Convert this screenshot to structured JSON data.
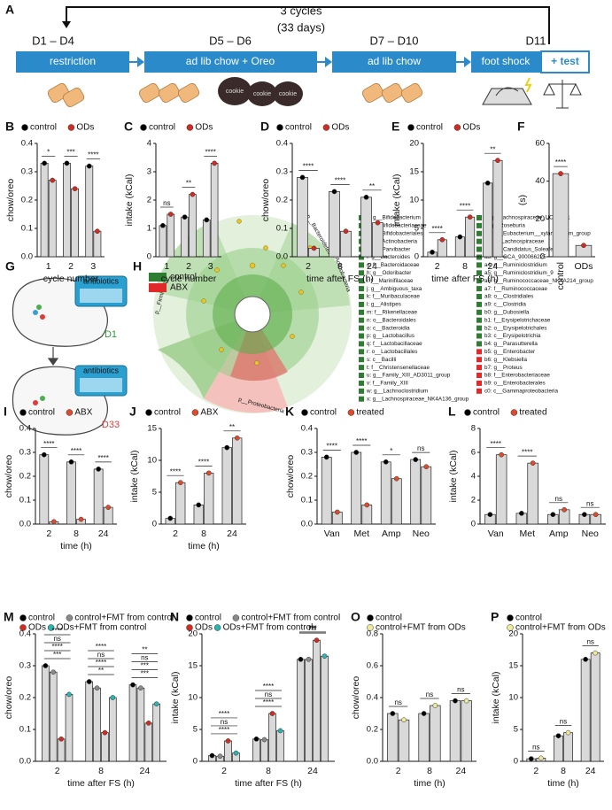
{
  "timeline": {
    "label": "A",
    "cycles": "3 cycles",
    "days": "(33 days)",
    "days_labels": [
      "D1 – D4",
      "D5 – D6",
      "D7 – D10",
      "D11"
    ],
    "steps": [
      "restriction",
      "ad lib chow + Oreo",
      "ad lib chow",
      "foot shock",
      "+ test"
    ],
    "oreo_label": "cookie"
  },
  "antibiotics_panel": {
    "label": "G",
    "top_text": "antibiotics",
    "top_day": "D1",
    "bottom_text": "antibiotics",
    "bottom_day": "D33"
  },
  "cladogram": {
    "label": "H",
    "legend": [
      {
        "text": "control",
        "color": "#2e7d32"
      },
      {
        "text": "ABX",
        "color": "#e02a2a"
      }
    ],
    "phyla": [
      "p__Firmicutes",
      "p__Bacteroidetes",
      "p__Actinobacteria",
      "p__Proteobacteria"
    ],
    "taxa": [
      {
        "text": "a: g__Bifidobacterium",
        "color": "#2e7d32"
      },
      {
        "text": "b: f__Bifidobacteriaceae",
        "color": "#2e7d32"
      },
      {
        "text": "c: o__Bifidobacteriales",
        "color": "#2e7d32"
      },
      {
        "text": "d: c__Actinobacteria",
        "color": "#2e7d32"
      },
      {
        "text": "e: g__Parvibacter",
        "color": "#2e7d32"
      },
      {
        "text": "f: g__Bacteroides",
        "color": "#2e7d32"
      },
      {
        "text": "g: f__Bacteroidaceae",
        "color": "#2e7d32"
      },
      {
        "text": "h: g__Odoribacter",
        "color": "#2e7d32"
      },
      {
        "text": "i: f__Marinifilaceae",
        "color": "#2e7d32"
      },
      {
        "text": "j: g__Ambiguous_taxa",
        "color": "#2e7d32"
      },
      {
        "text": "k: f__Muribaculaceae",
        "color": "#2e7d32"
      },
      {
        "text": "l: g__Alistipes",
        "color": "#2e7d32"
      },
      {
        "text": "m: f__Rikenellaceae",
        "color": "#2e7d32"
      },
      {
        "text": "n: o__Bacteroidales",
        "color": "#2e7d32"
      },
      {
        "text": "o: c__Bacteroidia",
        "color": "#2e7d32"
      },
      {
        "text": "p: g__Lactobacillus",
        "color": "#2e7d32"
      },
      {
        "text": "q: f__Lactobacillaceae",
        "color": "#2e7d32"
      },
      {
        "text": "r: o__Lactobacillales",
        "color": "#2e7d32"
      },
      {
        "text": "s: c__Bacilli",
        "color": "#2e7d32"
      },
      {
        "text": "t: f__Christensenellaceae",
        "color": "#2e7d32"
      },
      {
        "text": "u: g__Family_XIII_AD3011_group",
        "color": "#2e7d32"
      },
      {
        "text": "v: f__Family_XIII",
        "color": "#2e7d32"
      },
      {
        "text": "w: g__Lachnoclostridium",
        "color": "#2e7d32"
      },
      {
        "text": "x: g__Lachnospiraceae_NK4A136_group",
        "color": "#2e7d32"
      },
      {
        "text": "y: g__Lachnospiraceae_UCG_001",
        "color": "#2e7d32"
      },
      {
        "text": "z: g__Roseburia",
        "color": "#2e7d32"
      },
      {
        "text": "a0: g__Eubacterium__xylanophilum_group",
        "color": "#2e7d32"
      },
      {
        "text": "a1: f__Lachnospiraceae",
        "color": "#2e7d32"
      },
      {
        "text": "a2: g__Candidatus_Soleaferrea",
        "color": "#2e7d32"
      },
      {
        "text": "a3: g__GCA_900066225",
        "color": "#2e7d32"
      },
      {
        "text": "a4: g__Ruminiclostridium",
        "color": "#2e7d32"
      },
      {
        "text": "a5: g__Ruminiclostridium_9",
        "color": "#2e7d32"
      },
      {
        "text": "a6: g__Ruminococcaceae_NK4A214_group",
        "color": "#2e7d32"
      },
      {
        "text": "a7: f__Ruminococcaceae",
        "color": "#2e7d32"
      },
      {
        "text": "a8: o__Clostridiales",
        "color": "#2e7d32"
      },
      {
        "text": "a9: c__Clostridia",
        "color": "#2e7d32"
      },
      {
        "text": "b0: g__Dubosiella",
        "color": "#2e7d32"
      },
      {
        "text": "b1: f__Erysipelotrichaceae",
        "color": "#2e7d32"
      },
      {
        "text": "b2: o__Erysipelotrichales",
        "color": "#2e7d32"
      },
      {
        "text": "b3: c__Erysipelotrichia",
        "color": "#2e7d32"
      },
      {
        "text": "b4: g__Parasutterella",
        "color": "#2e7d32"
      },
      {
        "text": "b5: g__Enterobacter",
        "color": "#e02a2a"
      },
      {
        "text": "b6: g__Klebsiella",
        "color": "#e02a2a"
      },
      {
        "text": "b7: g__Proteus",
        "color": "#e02a2a"
      },
      {
        "text": "b8: f__Enterobacteriaceae",
        "color": "#e02a2a"
      },
      {
        "text": "b9: o__Enterobacterales",
        "color": "#e02a2a"
      },
      {
        "text": "c0: c__Gammaproteobacteria",
        "color": "#e02a2a"
      }
    ]
  },
  "chart_data": [
    {
      "type": "bar",
      "label": "B",
      "y_label": "chow/oreo",
      "x_label": "cycle number",
      "categories": [
        "1",
        "2",
        "3"
      ],
      "ylim": [
        0,
        0.4
      ],
      "yticks": [
        {
          "value": 0,
          "label": "0.0"
        },
        0.1,
        0.2,
        0.3,
        0.4
      ],
      "series": [
        {
          "name": "control",
          "color": "#000000",
          "values": [
            0.33,
            0.33,
            0.32
          ]
        },
        {
          "name": "ODs",
          "color": "#d62a1e",
          "values": [
            0.27,
            0.24,
            0.09
          ]
        }
      ],
      "significance": [
        "*",
        "***",
        "****"
      ]
    },
    {
      "type": "bar",
      "label": "C",
      "y_label": "intake (kCal)",
      "x_label": "cycle number",
      "categories": [
        "1",
        "2",
        "3"
      ],
      "ylim": [
        0,
        4
      ],
      "yticks": [
        0,
        1,
        2,
        3,
        4
      ],
      "series": [
        {
          "name": "control",
          "color": "#000000",
          "values": [
            1.1,
            1.4,
            1.3
          ]
        },
        {
          "name": "ODs",
          "color": "#d62a1e",
          "values": [
            1.5,
            2.2,
            3.3
          ]
        }
      ],
      "significance": [
        "ns",
        "**",
        "****"
      ]
    },
    {
      "type": "bar",
      "label": "D",
      "y_label": "chow/oreo",
      "x_label": "time after FS (h)",
      "categories": [
        "2",
        "8",
        "24"
      ],
      "ylim": [
        0,
        0.4
      ],
      "yticks": [
        {
          "value": 0,
          "label": "0.0"
        },
        0.1,
        0.2,
        0.3,
        0.4
      ],
      "series": [
        {
          "name": "control",
          "color": "#000000",
          "values": [
            0.28,
            0.23,
            0.21
          ]
        },
        {
          "name": "ODs",
          "color": "#d62a1e",
          "values": [
            0.03,
            0.09,
            0.12
          ]
        }
      ],
      "significance": [
        "****",
        "****",
        "**"
      ]
    },
    {
      "type": "bar",
      "label": "E",
      "y_label": "intake (kCal)",
      "x_label": "time after FS (h)",
      "categories": [
        "2",
        "8",
        "24"
      ],
      "ylim": [
        0,
        20
      ],
      "yticks": [
        0,
        5,
        10,
        15,
        20
      ],
      "series": [
        {
          "name": "control",
          "color": "#000000",
          "values": [
            0.8,
            3.5,
            13
          ]
        },
        {
          "name": "ODs",
          "color": "#d62a1e",
          "values": [
            3,
            7,
            17
          ]
        }
      ],
      "significance": [
        "****",
        "****",
        "**"
      ]
    },
    {
      "type": "bar",
      "label": "F",
      "y_label": "(s)",
      "categories": [
        "control",
        "ODs"
      ],
      "ylim": [
        0,
        60
      ],
      "yticks": [
        0,
        20,
        40,
        60
      ],
      "series": [
        {
          "color": "#d62a1e",
          "values": [
            44,
            6
          ]
        }
      ],
      "significance": [
        "****"
      ]
    },
    {
      "type": "bar",
      "label": "I",
      "y_label": "chow/oreo",
      "x_label": "time (h)",
      "categories": [
        "2",
        "8",
        "24"
      ],
      "ylim": [
        0,
        0.4
      ],
      "yticks": [
        {
          "value": 0,
          "label": "0.0"
        },
        0.1,
        0.2,
        0.3,
        0.4
      ],
      "series": [
        {
          "name": "control",
          "color": "#000000",
          "values": [
            0.29,
            0.26,
            0.23
          ]
        },
        {
          "name": "ABX",
          "color": "#e04a2a",
          "values": [
            0.01,
            0.02,
            0.07
          ]
        }
      ],
      "significance": [
        "****",
        "****",
        "****"
      ]
    },
    {
      "type": "bar",
      "label": "J",
      "y_label": "intake (kCal)",
      "x_label": "time (h)",
      "categories": [
        "2",
        "8",
        "24"
      ],
      "ylim": [
        0,
        15
      ],
      "yticks": [
        0,
        5,
        10,
        15
      ],
      "series": [
        {
          "name": "control",
          "color": "#000000",
          "values": [
            0.9,
            3,
            12
          ]
        },
        {
          "name": "ABX",
          "color": "#e04a2a",
          "values": [
            6.5,
            8,
            13.5
          ]
        }
      ],
      "significance": [
        "****",
        "****",
        "**"
      ]
    },
    {
      "type": "bar",
      "label": "K",
      "y_label": "chow/oreo",
      "categories": [
        "Van",
        "Met",
        "Amp",
        "Neo"
      ],
      "ylim": [
        0,
        0.4
      ],
      "yticks": [
        {
          "value": 0,
          "label": "0.0"
        },
        0.1,
        0.2,
        0.3,
        0.4
      ],
      "series": [
        {
          "name": "control",
          "color": "#000000",
          "values": [
            0.28,
            0.3,
            0.26,
            0.27
          ]
        },
        {
          "name": "treated",
          "color": "#e04a2a",
          "values": [
            0.05,
            0.08,
            0.19,
            0.24
          ]
        }
      ],
      "significance": [
        "****",
        "****",
        "*",
        "ns"
      ]
    },
    {
      "type": "bar",
      "label": "L",
      "y_label": "intake (kCal)",
      "categories": [
        "Van",
        "Met",
        "Amp",
        "Neo"
      ],
      "ylim": [
        0,
        8
      ],
      "yticks": [
        0,
        2,
        4,
        6,
        8
      ],
      "series": [
        {
          "name": "control",
          "color": "#000000",
          "values": [
            0.8,
            0.9,
            0.8,
            0.8
          ]
        },
        {
          "name": "treated",
          "color": "#e04a2a",
          "values": [
            5.8,
            5.1,
            1.2,
            0.8
          ]
        }
      ],
      "significance": [
        "****",
        "****",
        "ns",
        "ns"
      ]
    },
    {
      "type": "bar",
      "label": "M",
      "y_label": "chow/oreo",
      "x_label": "time after FS (h)",
      "categories": [
        "2",
        "8",
        "24"
      ],
      "ylim": [
        0,
        0.4
      ],
      "yticks": [
        {
          "value": 0,
          "label": "0.0"
        },
        0.1,
        0.2,
        0.3,
        0.4
      ],
      "series": [
        {
          "name": "control",
          "color": "#000000",
          "values": [
            0.3,
            0.25,
            0.24
          ]
        },
        {
          "name": "control+FMT from control",
          "color": "#8a8a8a",
          "values": [
            0.28,
            0.23,
            0.23
          ]
        },
        {
          "name": "ODs",
          "color": "#d62a1e",
          "values": [
            0.07,
            0.09,
            0.12
          ]
        },
        {
          "name": "ODs+FMT from control",
          "color": "#2ab5b0",
          "values": [
            0.21,
            0.2,
            0.18
          ]
        }
      ],
      "significance": [
        [
          "***",
          "****",
          "ns",
          "****"
        ],
        [
          "**",
          "****",
          "ns",
          "****"
        ],
        [
          "***",
          "***",
          "ns",
          "**"
        ]
      ]
    },
    {
      "type": "bar",
      "label": "N",
      "y_label": "intake (kCal)",
      "x_label": "time after FS (h)",
      "categories": [
        "2",
        "8",
        "24"
      ],
      "ylim": [
        0,
        20
      ],
      "yticks": [
        0,
        5,
        10,
        15,
        20
      ],
      "series": [
        {
          "name": "control",
          "color": "#000000",
          "values": [
            0.9,
            3.5,
            16
          ]
        },
        {
          "name": "control+FMT from control",
          "color": "#8a8a8a",
          "values": [
            0.8,
            3.4,
            16
          ]
        },
        {
          "name": "ODs",
          "color": "#d62a1e",
          "values": [
            3.2,
            7.5,
            19
          ]
        },
        {
          "name": "ODs+FMT from control",
          "color": "#2ab5b0",
          "values": [
            1.3,
            4.8,
            16.5
          ]
        }
      ],
      "significance": [
        [
          "****",
          "ns",
          "****"
        ],
        [
          "****",
          "ns",
          "****"
        ],
        [
          "***",
          "ns",
          "***"
        ]
      ]
    },
    {
      "type": "bar",
      "label": "O",
      "y_label": "chow/oreo",
      "x_label": "time (h)",
      "categories": [
        "2",
        "8",
        "24"
      ],
      "ylim": [
        0,
        0.8
      ],
      "yticks": [
        {
          "value": 0,
          "label": "0.0"
        },
        0.2,
        0.4,
        0.6,
        0.8
      ],
      "series": [
        {
          "name": "control",
          "color": "#000000",
          "values": [
            0.3,
            0.3,
            0.38
          ]
        },
        {
          "name": "control+FMT from ODs",
          "color": "#eeea9a",
          "values": [
            0.26,
            0.35,
            0.38
          ]
        }
      ],
      "significance": [
        "ns",
        "ns",
        "ns"
      ]
    },
    {
      "type": "bar",
      "label": "P",
      "y_label": "intake (kCal)",
      "x_label": "time (h)",
      "categories": [
        "2",
        "8",
        "24"
      ],
      "ylim": [
        0,
        20
      ],
      "yticks": [
        0,
        5,
        10,
        15,
        20
      ],
      "series": [
        {
          "name": "control",
          "color": "#000000",
          "values": [
            0.4,
            4,
            16
          ]
        },
        {
          "name": "control+FMT from ODs",
          "color": "#eeea9a",
          "values": [
            0.5,
            4.5,
            17
          ]
        }
      ],
      "significance": [
        "ns",
        "ns",
        "ns"
      ]
    }
  ]
}
